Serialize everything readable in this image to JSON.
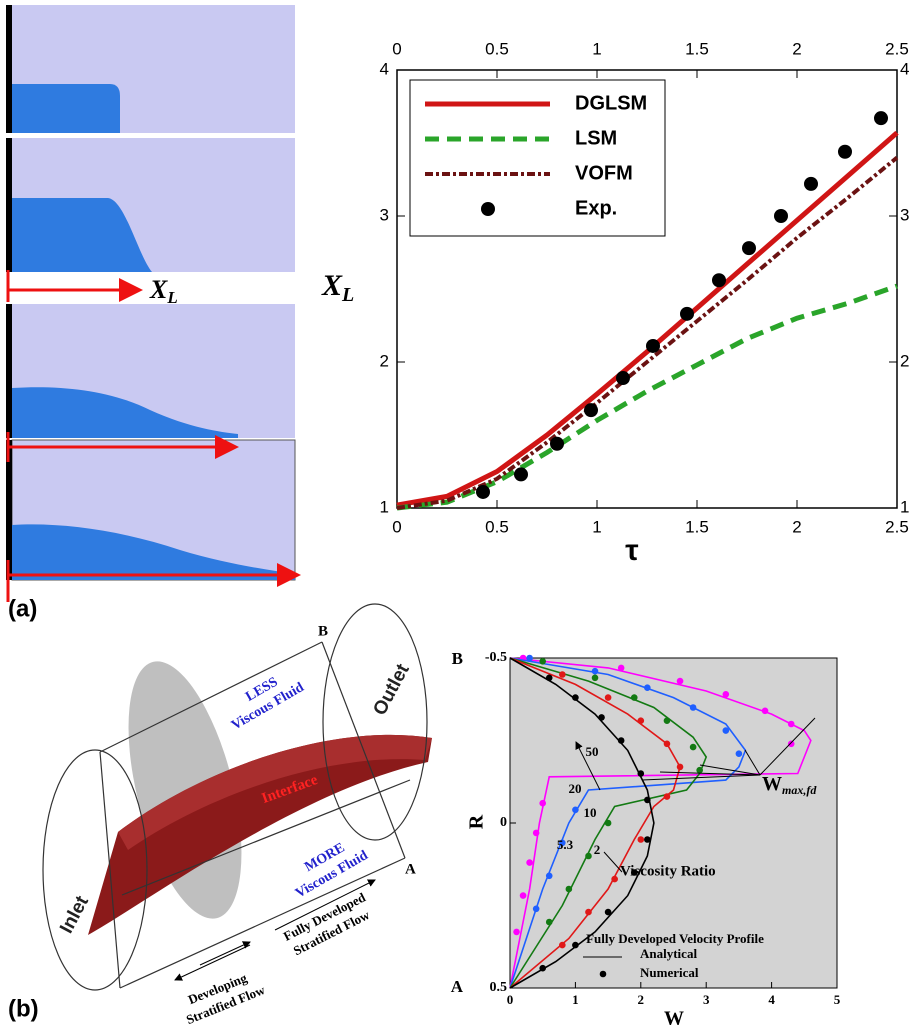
{
  "panel_labels": [
    "(a)",
    "(b)"
  ],
  "simulation": {
    "label": "X",
    "label_sub": "L"
  },
  "chart_data": [
    {
      "type": "line",
      "x_label": "τ",
      "y_label": "X",
      "y_label_sub": "L",
      "xlim": [
        0,
        2.5
      ],
      "ylim": [
        1,
        4
      ],
      "xticks": [
        0,
        0.5,
        1,
        1.5,
        2,
        2.5
      ],
      "yticks": [
        1,
        2,
        3,
        4
      ],
      "legend": "upper left",
      "series": [
        {
          "name": "DGLSM",
          "color": "#d01515",
          "style": "solid",
          "x": [
            0,
            0.25,
            0.5,
            0.75,
            1,
            1.25,
            1.5,
            1.75,
            2,
            2.25,
            2.5
          ],
          "values": [
            1.02,
            1.08,
            1.25,
            1.5,
            1.78,
            2.07,
            2.37,
            2.67,
            2.97,
            3.27,
            3.57
          ]
        },
        {
          "name": "LSM",
          "color": "#2aa52a",
          "style": "dashed",
          "x": [
            0,
            0.25,
            0.5,
            0.75,
            1,
            1.25,
            1.5,
            1.75,
            2,
            2.25,
            2.5
          ],
          "values": [
            1,
            1.04,
            1.18,
            1.38,
            1.6,
            1.8,
            1.98,
            2.16,
            2.3,
            2.4,
            2.52
          ]
        },
        {
          "name": "VOFM",
          "color": "#6b1212",
          "style": "dash-dot",
          "x": [
            0,
            0.25,
            0.5,
            0.75,
            1,
            1.25,
            1.5,
            1.75,
            2,
            2.25,
            2.5
          ],
          "values": [
            1,
            1.05,
            1.2,
            1.45,
            1.72,
            2.0,
            2.28,
            2.56,
            2.85,
            3.12,
            3.4
          ]
        },
        {
          "name": "Exp.",
          "color": "#000000",
          "style": "markers",
          "x": [
            0.43,
            0.62,
            0.8,
            0.97,
            1.13,
            1.28,
            1.45,
            1.61,
            1.76,
            1.92,
            2.07,
            2.24,
            2.42
          ],
          "values": [
            1.11,
            1.23,
            1.44,
            1.67,
            1.89,
            2.11,
            2.33,
            2.56,
            2.78,
            3.0,
            3.22,
            3.44,
            3.67
          ]
        }
      ]
    },
    {
      "type": "line",
      "x_label": "W",
      "y_label": "R",
      "xlim": [
        0,
        5
      ],
      "ylim": [
        0.5,
        -0.5
      ],
      "xticks": [
        0,
        1,
        2,
        3,
        4,
        5
      ],
      "yticks": [
        -0.5,
        0,
        0.5
      ],
      "background": "#d3d3d3",
      "end_labels": [
        "B",
        "A"
      ],
      "annotations": {
        "ratio": "Viscosity Ratio",
        "wmax": "W",
        "wmax_sub": "max,fd"
      },
      "legend": {
        "title": "Fully Developed Velocity Profile",
        "entries": [
          "Analytical",
          "Numerical"
        ]
      },
      "series": [
        {
          "name": "50",
          "color": "#ff00ff",
          "x": [
            0,
            1.5,
            3,
            4,
            4.5,
            4.6,
            4.5,
            4.4,
            0.6,
            0.45,
            0.3,
            0
          ],
          "values": [
            -0.5,
            -0.47,
            -0.4,
            -0.33,
            -0.28,
            -0.25,
            -0.2,
            -0.15,
            -0.14,
            0,
            0.2,
            0.5
          ],
          "num_x": [
            0.2,
            1.7,
            2.6,
            3.3,
            3.9,
            4.3,
            4.3,
            0.5,
            0.4,
            0.3,
            0.2,
            0.1
          ],
          "num_values": [
            -0.5,
            -0.47,
            -0.43,
            -0.39,
            -0.34,
            -0.3,
            -0.24,
            -0.06,
            0.03,
            0.12,
            0.22,
            0.33
          ]
        },
        {
          "name": "20",
          "color": "#1f5fff",
          "x": [
            0,
            1.5,
            2.5,
            3.3,
            3.6,
            3.5,
            3.3,
            1.2,
            0.9,
            0.5,
            0
          ],
          "values": [
            -0.5,
            -0.45,
            -0.38,
            -0.3,
            -0.22,
            -0.17,
            -0.13,
            -0.1,
            0,
            0.2,
            0.5
          ],
          "num_x": [
            0.3,
            1.3,
            2.1,
            2.8,
            3.3,
            3.5,
            1.0,
            0.8,
            0.6,
            0.4
          ],
          "num_values": [
            -0.5,
            -0.46,
            -0.41,
            -0.35,
            -0.28,
            -0.21,
            -0.04,
            0.06,
            0.16,
            0.26
          ]
        },
        {
          "name": "10",
          "color": "#137a13",
          "x": [
            0,
            1.2,
            2.2,
            2.8,
            3.0,
            2.9,
            2.7,
            1.6,
            1.3,
            0.8,
            0
          ],
          "values": [
            -0.5,
            -0.43,
            -0.35,
            -0.26,
            -0.2,
            -0.15,
            -0.1,
            -0.05,
            0.05,
            0.25,
            0.5
          ],
          "num_x": [
            0.5,
            1.3,
            1.9,
            2.4,
            2.8,
            2.9,
            1.5,
            1.2,
            0.9,
            0.6
          ],
          "num_values": [
            -0.49,
            -0.44,
            -0.38,
            -0.31,
            -0.23,
            -0.16,
            0,
            0.1,
            0.2,
            0.3
          ]
        },
        {
          "name": "5.3",
          "color": "#e01818",
          "x": [
            0,
            1,
            1.8,
            2.4,
            2.6,
            2.5,
            2.2,
            1.9,
            1.5,
            0.9,
            0
          ],
          "values": [
            -0.5,
            -0.42,
            -0.33,
            -0.24,
            -0.17,
            -0.1,
            -0.05,
            0.05,
            0.2,
            0.35,
            0.5
          ],
          "num_x": [
            0.8,
            1.5,
            2.0,
            2.4,
            2.6,
            2.4,
            2.0,
            1.6,
            1.2,
            0.8
          ],
          "num_values": [
            -0.45,
            -0.38,
            -0.31,
            -0.24,
            -0.17,
            -0.08,
            0.05,
            0.17,
            0.27,
            0.37
          ]
        },
        {
          "name": "2",
          "color": "#000000",
          "x": [
            0,
            0.7,
            1.3,
            1.8,
            2.1,
            2.2,
            2.1,
            1.8,
            1.3,
            0.7,
            0
          ],
          "values": [
            -0.5,
            -0.42,
            -0.33,
            -0.22,
            -0.1,
            0,
            0.1,
            0.22,
            0.33,
            0.42,
            0.5
          ],
          "num_x": [
            0.6,
            1.0,
            1.4,
            1.7,
            2.0,
            2.1,
            2.1,
            1.9,
            1.5,
            1.0,
            0.5
          ],
          "num_values": [
            -0.44,
            -0.38,
            -0.32,
            -0.25,
            -0.15,
            -0.07,
            0.05,
            0.15,
            0.27,
            0.37,
            0.44
          ]
        }
      ]
    }
  ],
  "diagram": {
    "end_b": "B",
    "end_a": "A",
    "outlet": "Outlet",
    "inlet": "Inlet",
    "less": "LESS",
    "less_sub": "Viscous Fluid",
    "interface": "Interface",
    "more": "MORE",
    "more_sub": "Viscous Fluid",
    "developed": [
      "Fully Developed",
      "Stratified Flow"
    ],
    "developing": [
      "Developing",
      "Stratified Flow"
    ]
  }
}
